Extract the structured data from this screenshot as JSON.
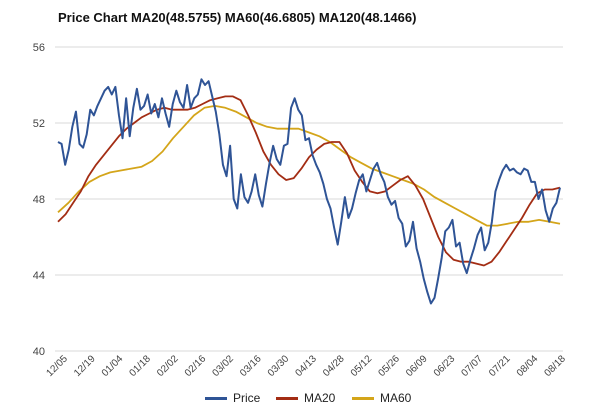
{
  "chart_data": {
    "type": "line",
    "title": "Price Chart MA20(48.5755) MA60(46.6805) MA120(48.1466)",
    "xlabel": "",
    "ylabel": "",
    "ylim": [
      40,
      56
    ],
    "yticks": [
      "56",
      "52",
      "48",
      "44",
      "40"
    ],
    "xticks": [
      "12/05",
      "12/19",
      "01/04",
      "01/18",
      "02/02",
      "02/16",
      "03/02",
      "03/16",
      "03/30",
      "04/13",
      "04/28",
      "05/12",
      "05/26",
      "06/09",
      "06/23",
      "07/07",
      "07/21",
      "08/04",
      "08/18"
    ],
    "grid": true,
    "legend_position": "bottom",
    "series": [
      {
        "name": "Price",
        "color": "#2f5496",
        "values": [
          51.0,
          50.9,
          49.8,
          50.6,
          51.8,
          52.6,
          50.9,
          50.7,
          51.4,
          52.7,
          52.4,
          52.9,
          53.3,
          53.7,
          53.9,
          53.5,
          53.9,
          52.4,
          51.2,
          53.3,
          51.3,
          52.8,
          53.8,
          52.7,
          52.9,
          53.5,
          52.5,
          53.0,
          52.3,
          53.3,
          52.5,
          51.8,
          53.0,
          53.7,
          53.1,
          52.8,
          54.0,
          52.8,
          53.3,
          53.5,
          54.3,
          54.0,
          54.2,
          53.4,
          52.6,
          51.4,
          49.8,
          49.2,
          50.8,
          48.0,
          47.5,
          49.3,
          48.1,
          47.8,
          48.4,
          49.3,
          48.2,
          47.6,
          48.8,
          49.9,
          50.8,
          50.1,
          49.8,
          50.8,
          50.9,
          52.8,
          53.3,
          52.7,
          52.4,
          51.1,
          51.2,
          50.3,
          49.8,
          49.4,
          48.8,
          48.0,
          47.5,
          46.5,
          45.6,
          46.8,
          48.1,
          47.0,
          47.5,
          48.3,
          49.0,
          49.3,
          48.4,
          49.0,
          49.6,
          49.9,
          49.3,
          48.9,
          48.1,
          47.7,
          47.9,
          47.0,
          46.7,
          45.5,
          45.8,
          46.8,
          45.4,
          44.7,
          43.8,
          43.1,
          42.5,
          42.8,
          43.8,
          44.9,
          46.3,
          46.5,
          46.9,
          45.5,
          45.7,
          44.6,
          44.1,
          44.8,
          45.4,
          46.1,
          46.5,
          45.3,
          45.7,
          46.8,
          48.4,
          49.0,
          49.5,
          49.8,
          49.5,
          49.6,
          49.4,
          49.3,
          49.6,
          49.5,
          48.9,
          48.9,
          48.0,
          48.5,
          47.4,
          46.8,
          47.5,
          47.8,
          48.6
        ]
      },
      {
        "name": "MA20",
        "color": "#a32d14",
        "values": [
          46.8,
          47.2,
          47.8,
          48.4,
          49.2,
          49.8,
          50.3,
          50.8,
          51.3,
          51.7,
          52.0,
          52.3,
          52.5,
          52.7,
          52.8,
          52.7,
          52.7,
          52.7,
          52.8,
          53.0,
          53.2,
          53.3,
          53.4,
          53.4,
          53.2,
          52.4,
          51.5,
          50.5,
          49.8,
          49.3,
          49.0,
          49.1,
          49.6,
          50.2,
          50.6,
          50.9,
          51.0,
          51.0,
          50.4,
          49.5,
          48.9,
          48.4,
          48.3,
          48.4,
          48.7,
          49.0,
          49.2,
          48.7,
          48.0,
          47.0,
          46.0,
          45.2,
          44.8,
          44.7,
          44.7,
          44.6,
          44.5,
          44.7,
          45.2,
          45.8,
          46.4,
          47.0,
          47.7,
          48.3,
          48.5,
          48.5,
          48.6
        ]
      },
      {
        "name": "MA60",
        "color": "#d4a51a",
        "values": [
          47.3,
          47.8,
          48.4,
          48.9,
          49.2,
          49.4,
          49.5,
          49.6,
          49.7,
          50.0,
          50.5,
          51.2,
          51.8,
          52.4,
          52.8,
          52.9,
          52.8,
          52.6,
          52.3,
          52.0,
          51.8,
          51.7,
          51.7,
          51.7,
          51.5,
          51.3,
          51.0,
          50.6,
          50.2,
          49.9,
          49.6,
          49.4,
          49.2,
          49.0,
          48.8,
          48.5,
          48.1,
          47.8,
          47.5,
          47.2,
          46.9,
          46.6,
          46.6,
          46.7,
          46.8,
          46.8,
          46.9,
          46.8,
          46.7
        ]
      }
    ]
  }
}
